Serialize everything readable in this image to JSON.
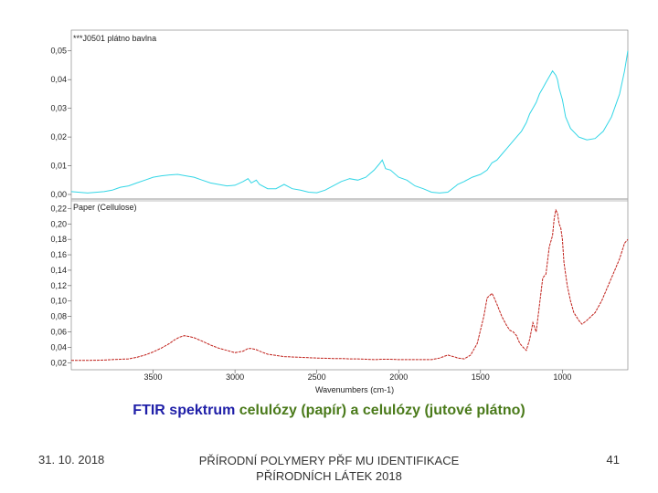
{
  "chart_data": [
    {
      "type": "line",
      "series": [
        {
          "name": "***J0501 plátno bavlna",
          "color": "#33d6e6",
          "x": [
            4000,
            3900,
            3800,
            3750,
            3700,
            3650,
            3600,
            3550,
            3500,
            3450,
            3400,
            3350,
            3300,
            3250,
            3200,
            3150,
            3100,
            3050,
            3000,
            2950,
            2920,
            2900,
            2870,
            2850,
            2800,
            2750,
            2700,
            2650,
            2600,
            2550,
            2500,
            2450,
            2400,
            2350,
            2300,
            2250,
            2200,
            2170,
            2150,
            2120,
            2100,
            2080,
            2050,
            2000,
            1950,
            1900,
            1850,
            1800,
            1750,
            1700,
            1650,
            1640,
            1600,
            1550,
            1500,
            1460,
            1430,
            1400,
            1370,
            1340,
            1310,
            1280,
            1250,
            1220,
            1200,
            1180,
            1160,
            1140,
            1120,
            1100,
            1080,
            1060,
            1040,
            1030,
            1020,
            1000,
            980,
            950,
            900,
            850,
            800,
            750,
            700,
            650,
            620,
            600
          ],
          "y": [
            0.001,
            0.0005,
            0.001,
            0.0015,
            0.0025,
            0.003,
            0.004,
            0.005,
            0.006,
            0.0065,
            0.0068,
            0.007,
            0.0065,
            0.006,
            0.005,
            0.004,
            0.0035,
            0.003,
            0.0032,
            0.0045,
            0.0055,
            0.004,
            0.005,
            0.0035,
            0.002,
            0.002,
            0.0035,
            0.002,
            0.0015,
            0.0008,
            0.0006,
            0.0015,
            0.003,
            0.0045,
            0.0055,
            0.005,
            0.006,
            0.0075,
            0.0085,
            0.0105,
            0.012,
            0.009,
            0.0085,
            0.006,
            0.005,
            0.003,
            0.002,
            0.0008,
            0.0005,
            0.0008,
            0.003,
            0.0035,
            0.0045,
            0.006,
            0.007,
            0.0085,
            0.011,
            0.012,
            0.014,
            0.016,
            0.018,
            0.02,
            0.022,
            0.025,
            0.028,
            0.03,
            0.032,
            0.035,
            0.037,
            0.039,
            0.041,
            0.043,
            0.0415,
            0.04,
            0.037,
            0.033,
            0.027,
            0.023,
            0.02,
            0.019,
            0.0195,
            0.022,
            0.027,
            0.035,
            0.043,
            0.05
          ]
        }
      ],
      "xlim": [
        4000,
        600
      ],
      "ylim": [
        0,
        0.055
      ],
      "yticks": [
        "0,00",
        "0,01",
        "0,02",
        "0,03",
        "0,04",
        "0,05"
      ],
      "ytick_values": [
        0,
        0.01,
        0.02,
        0.03,
        0.04,
        0.05
      ]
    },
    {
      "type": "line",
      "series": [
        {
          "name": "Paper (Cellulose)",
          "color": "#c0201a",
          "x": [
            4000,
            3900,
            3800,
            3750,
            3700,
            3650,
            3600,
            3550,
            3500,
            3450,
            3400,
            3370,
            3340,
            3310,
            3280,
            3250,
            3200,
            3150,
            3100,
            3050,
            3000,
            2950,
            2920,
            2900,
            2870,
            2850,
            2800,
            2750,
            2700,
            2600,
            2500,
            2400,
            2350,
            2300,
            2250,
            2200,
            2150,
            2100,
            2050,
            2000,
            1900,
            1800,
            1750,
            1700,
            1650,
            1640,
            1600,
            1560,
            1520,
            1480,
            1460,
            1430,
            1420,
            1400,
            1370,
            1340,
            1320,
            1300,
            1280,
            1260,
            1240,
            1220,
            1200,
            1180,
            1160,
            1140,
            1120,
            1100,
            1080,
            1060,
            1050,
            1040,
            1030,
            1020,
            1010,
            1000,
            990,
            970,
            950,
            930,
            900,
            880,
            850,
            800,
            760,
            720,
            680,
            650,
            620,
            600
          ],
          "y": [
            0.023,
            0.023,
            0.0235,
            0.024,
            0.0245,
            0.025,
            0.027,
            0.03,
            0.034,
            0.039,
            0.045,
            0.0495,
            0.053,
            0.055,
            0.054,
            0.0525,
            0.048,
            0.043,
            0.039,
            0.036,
            0.033,
            0.035,
            0.0385,
            0.0385,
            0.037,
            0.035,
            0.031,
            0.0295,
            0.028,
            0.027,
            0.026,
            0.0255,
            0.0255,
            0.025,
            0.025,
            0.0245,
            0.024,
            0.0245,
            0.0245,
            0.024,
            0.024,
            0.024,
            0.026,
            0.03,
            0.027,
            0.026,
            0.025,
            0.03,
            0.045,
            0.08,
            0.104,
            0.11,
            0.106,
            0.096,
            0.08,
            0.068,
            0.062,
            0.06,
            0.055,
            0.045,
            0.04,
            0.036,
            0.05,
            0.072,
            0.06,
            0.095,
            0.13,
            0.135,
            0.17,
            0.185,
            0.207,
            0.218,
            0.214,
            0.2,
            0.195,
            0.18,
            0.15,
            0.12,
            0.1,
            0.085,
            0.075,
            0.07,
            0.075,
            0.085,
            0.1,
            0.12,
            0.14,
            0.155,
            0.175,
            0.18
          ]
        }
      ],
      "xlim": [
        4000,
        600
      ],
      "ylim": [
        0.018,
        0.224
      ],
      "yticks": [
        "0,02",
        "0,04",
        "0,06",
        "0,08",
        "0,10",
        "0,12",
        "0,14",
        "0,16",
        "0,18",
        "0,20",
        "0,22"
      ],
      "ytick_values": [
        0.02,
        0.04,
        0.06,
        0.08,
        0.1,
        0.12,
        0.14,
        0.16,
        0.18,
        0.2,
        0.22
      ],
      "xticks": [
        "3500",
        "3000",
        "2500",
        "2000",
        "1500",
        "1000"
      ],
      "xtick_values": [
        3500,
        3000,
        2500,
        2000,
        1500,
        1000
      ],
      "xlabel": "Wavenumbers (cm-1)"
    }
  ],
  "caption": {
    "part1": "FTIR spektrum",
    "part2": " celulózy (papír) a celulózy (jutové plátno)"
  },
  "footer": {
    "date": "31. 10. 2018",
    "center": "PŘÍRODNÍ POLYMERY PŘF MU IDENTIFIKACE PŘÍRODNÍCH LÁTEK 2018",
    "page": "41"
  }
}
